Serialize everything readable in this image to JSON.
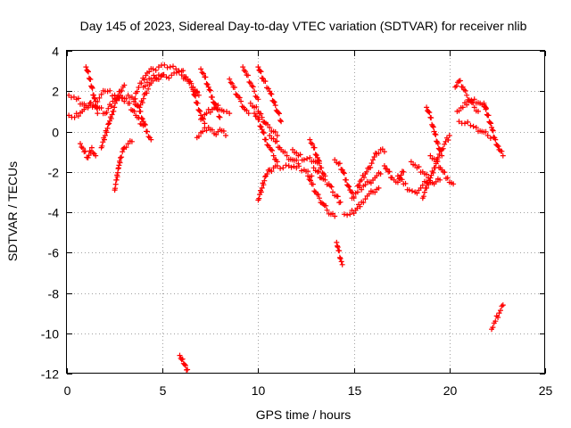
{
  "chart_data": {
    "type": "scatter",
    "title": "Day 145 of 2023, Sidereal Day-to-day VTEC variation (SDTVAR) for receiver nlib",
    "xlabel": "GPS time / hours",
    "ylabel": "SDTVAR / TECUs",
    "xlim": [
      0,
      25
    ],
    "ylim": [
      -12,
      4
    ],
    "xticks": [
      0,
      5,
      10,
      15,
      20,
      25
    ],
    "yticks": [
      -12,
      -10,
      -8,
      -6,
      -4,
      -2,
      0,
      2,
      4
    ],
    "grid": true,
    "marker": "+",
    "color": "#ff0000",
    "series": [
      {
        "name": "SDTVAR",
        "segments": [
          {
            "x": [
              0.1,
              0.5,
              1.0,
              1.5,
              2.0,
              2.5,
              3.0
            ],
            "y": [
              1.8,
              1.6,
              1.2,
              1.5,
              2.0,
              1.8,
              1.5
            ]
          },
          {
            "x": [
              0.1,
              0.4,
              0.8,
              1.2,
              1.6,
              2.0,
              2.4,
              2.8,
              3.2,
              3.6,
              4.0
            ],
            "y": [
              0.8,
              0.7,
              1.0,
              1.4,
              1.2,
              0.9,
              1.5,
              1.8,
              1.4,
              0.8,
              0.3
            ]
          },
          {
            "x": [
              0.7,
              0.9,
              1.1,
              1.3,
              1.5
            ],
            "y": [
              -0.6,
              -1.0,
              -1.3,
              -0.8,
              -1.2
            ]
          },
          {
            "x": [
              1.0,
              1.2,
              1.4,
              1.6
            ],
            "y": [
              3.2,
              2.6,
              1.8,
              0.9
            ]
          },
          {
            "x": [
              1.8,
              2.0,
              2.2,
              2.4,
              2.6,
              2.8,
              3.0
            ],
            "y": [
              -0.8,
              -0.2,
              0.4,
              1.0,
              1.6,
              2.0,
              2.3
            ]
          },
          {
            "x": [
              2.5,
              2.6,
              2.7,
              2.8,
              2.9,
              3.0,
              3.2,
              3.4
            ],
            "y": [
              -2.9,
              -2.4,
              -1.8,
              -1.3,
              -1.0,
              -0.8,
              -0.6,
              -0.5
            ]
          },
          {
            "x": [
              3.2,
              3.5,
              3.8,
              4.1,
              4.4,
              4.7,
              5.0
            ],
            "y": [
              1.8,
              1.6,
              1.2,
              1.9,
              2.4,
              2.6,
              2.8
            ]
          },
          {
            "x": [
              3.5,
              3.8,
              4.0,
              4.2,
              4.4
            ],
            "y": [
              1.5,
              1.0,
              0.5,
              0.0,
              -0.4
            ]
          },
          {
            "x": [
              3.6,
              3.9,
              4.2,
              4.5,
              4.8,
              5.1,
              5.4,
              5.7,
              6.0,
              6.3,
              6.6,
              6.9
            ],
            "y": [
              1.9,
              2.4,
              2.9,
              3.1,
              3.2,
              3.3,
              3.2,
              3.1,
              3.0,
              2.6,
              2.2,
              1.8
            ]
          },
          {
            "x": [
              4.0,
              4.4,
              4.8,
              5.2,
              5.6,
              6.0,
              6.4,
              6.8
            ],
            "y": [
              2.2,
              2.6,
              2.8,
              2.7,
              2.9,
              2.8,
              2.4,
              2.0
            ]
          },
          {
            "x": [
              5.9,
              6.0,
              6.1,
              6.2,
              6.3
            ],
            "y": [
              -11.1,
              -11.3,
              -11.5,
              -11.6,
              -11.8
            ]
          },
          {
            "x": [
              6.6,
              6.8,
              7.0,
              7.2
            ],
            "y": [
              2.0,
              1.4,
              0.8,
              0.4
            ]
          },
          {
            "x": [
              7.0,
              7.2,
              7.4,
              7.6,
              7.8,
              8.0
            ],
            "y": [
              3.1,
              2.7,
              2.2,
              1.7,
              1.2,
              0.7
            ]
          },
          {
            "x": [
              6.8,
              7.1,
              7.4,
              7.7,
              8.0,
              8.3
            ],
            "y": [
              -0.3,
              0.0,
              0.2,
              -0.1,
              0.1,
              -0.2
            ]
          },
          {
            "x": [
              7.0,
              7.3,
              7.6,
              7.9,
              8.2,
              8.5
            ],
            "y": [
              0.6,
              0.9,
              1.1,
              1.3,
              1.0,
              0.9
            ]
          },
          {
            "x": [
              8.5,
              8.7,
              8.9,
              9.1,
              9.3,
              9.5
            ],
            "y": [
              2.6,
              2.2,
              1.8,
              1.5,
              1.1,
              0.9
            ]
          },
          {
            "x": [
              9.2,
              9.4,
              9.6,
              9.8,
              10.0
            ],
            "y": [
              3.2,
              2.8,
              2.4,
              2.0,
              1.6
            ]
          },
          {
            "x": [
              9.6,
              9.8,
              10.0,
              10.2,
              10.4,
              10.6,
              10.8,
              11.0
            ],
            "y": [
              1.4,
              1.2,
              1.0,
              0.7,
              0.4,
              0.2,
              0.0,
              -0.2
            ]
          },
          {
            "x": [
              9.8,
              10.0,
              10.2,
              10.4,
              10.6,
              10.8,
              11.0
            ],
            "y": [
              0.9,
              0.6,
              0.1,
              -0.4,
              -0.8,
              -1.2,
              -1.5
            ]
          },
          {
            "x": [
              10.0,
              10.3,
              10.6,
              10.9,
              11.2
            ],
            "y": [
              3.2,
              2.5,
              2.0,
              1.3,
              0.5
            ]
          },
          {
            "x": [
              10.0,
              10.2,
              10.4,
              10.6,
              10.8,
              11.0,
              11.3,
              11.6,
              12.0,
              12.4,
              12.8
            ],
            "y": [
              -3.4,
              -2.8,
              -2.2,
              -1.9,
              -1.8,
              -1.7,
              -1.8,
              -1.7,
              -1.8,
              -1.9,
              -2.2
            ]
          },
          {
            "x": [
              10.6,
              10.9,
              11.2,
              11.5,
              11.8,
              12.1
            ],
            "y": [
              -0.2,
              -0.5,
              -0.9,
              -1.2,
              -1.4,
              -1.6
            ]
          },
          {
            "x": [
              11.8,
              12.1,
              12.4,
              12.7,
              13.0,
              13.3
            ],
            "y": [
              -0.9,
              -1.2,
              -1.4,
              -1.3,
              -1.5,
              -1.8
            ]
          },
          {
            "x": [
              12.6,
              12.8,
              13.0,
              13.2,
              13.4,
              13.6,
              13.8,
              14.0
            ],
            "y": [
              -2.2,
              -2.6,
              -3.0,
              -3.3,
              -3.6,
              -3.9,
              -4.1,
              -4.2
            ]
          },
          {
            "x": [
              12.9,
              13.1,
              13.3,
              13.5,
              13.7,
              13.9,
              14.1,
              14.3
            ],
            "y": [
              -1.8,
              -2.0,
              -2.3,
              -2.4,
              -2.6,
              -3.0,
              -3.2,
              -3.5
            ]
          },
          {
            "x": [
              12.7,
              12.9,
              13.1,
              13.3,
              13.5
            ],
            "y": [
              -0.4,
              -0.8,
              -1.3,
              -1.8,
              -2.2
            ]
          },
          {
            "x": [
              14.0,
              14.2,
              14.4,
              14.6,
              14.8,
              15.0
            ],
            "y": [
              -1.4,
              -1.6,
              -1.9,
              -2.4,
              -2.9,
              -3.3
            ]
          },
          {
            "x": [
              14.1,
              14.2,
              14.3,
              14.4
            ],
            "y": [
              -5.5,
              -5.9,
              -6.3,
              -6.6
            ]
          },
          {
            "x": [
              14.5,
              14.8,
              15.1,
              15.4,
              15.7,
              16.0,
              16.3
            ],
            "y": [
              -4.1,
              -4.1,
              -3.9,
              -3.5,
              -3.2,
              -3.0,
              -2.8
            ]
          },
          {
            "x": [
              14.9,
              15.2,
              15.5,
              15.8,
              16.1,
              16.4
            ],
            "y": [
              -3.3,
              -3.0,
              -2.7,
              -2.5,
              -2.3,
              -2.1
            ]
          },
          {
            "x": [
              15.2,
              15.4,
              15.6,
              15.8,
              16.0,
              16.2,
              16.4,
              16.6
            ],
            "y": [
              -2.7,
              -2.4,
              -2.1,
              -1.8,
              -1.4,
              -1.1,
              -0.9,
              -1.0
            ]
          },
          {
            "x": [
              16.6,
              16.8,
              17.0,
              17.2,
              17.4,
              17.6
            ],
            "y": [
              -1.7,
              -2.0,
              -2.3,
              -2.5,
              -2.3,
              -2.0
            ]
          },
          {
            "x": [
              17.3,
              17.6,
              17.9,
              18.2,
              18.5,
              18.8
            ],
            "y": [
              -2.2,
              -2.6,
              -2.9,
              -3.0,
              -2.8,
              -2.5
            ]
          },
          {
            "x": [
              18.0,
              18.3,
              18.6,
              18.9,
              19.2,
              19.5
            ],
            "y": [
              -1.5,
              -1.8,
              -2.0,
              -2.3,
              -2.6,
              -2.4
            ]
          },
          {
            "x": [
              18.8,
              19.0,
              19.2,
              19.4,
              19.6
            ],
            "y": [
              1.2,
              0.7,
              0.0,
              -0.6,
              -1.2
            ]
          },
          {
            "x": [
              18.6,
              18.8,
              19.0,
              19.2,
              19.4,
              19.6,
              19.8,
              20.0
            ],
            "y": [
              -3.3,
              -2.8,
              -2.3,
              -1.8,
              -1.3,
              -0.9,
              -0.5,
              -0.2
            ]
          },
          {
            "x": [
              19.0,
              19.3,
              19.6,
              19.9,
              20.2
            ],
            "y": [
              -1.2,
              -1.5,
              -1.9,
              -2.3,
              -2.6
            ]
          },
          {
            "x": [
              20.3,
              20.5,
              20.7,
              20.9,
              21.1,
              21.3,
              21.5
            ],
            "y": [
              2.2,
              2.5,
              2.2,
              1.8,
              1.5,
              1.2,
              1.0
            ]
          },
          {
            "x": [
              20.4,
              20.7,
              21.0,
              21.3,
              21.6,
              21.9
            ],
            "y": [
              1.0,
              1.2,
              1.5,
              1.6,
              1.4,
              1.1
            ]
          },
          {
            "x": [
              20.5,
              20.8,
              21.1,
              21.4,
              21.7,
              22.0,
              22.3
            ],
            "y": [
              0.5,
              0.4,
              0.3,
              0.2,
              0.0,
              -0.2,
              -0.3
            ]
          },
          {
            "x": [
              21.8,
              22.0,
              22.2,
              22.4,
              22.6,
              22.8
            ],
            "y": [
              1.4,
              0.8,
              0.2,
              -0.4,
              -0.9,
              -1.2
            ]
          },
          {
            "x": [
              22.2,
              22.4,
              22.6,
              22.8
            ],
            "y": [
              -9.8,
              -9.4,
              -9.0,
              -8.6
            ]
          }
        ]
      }
    ]
  }
}
